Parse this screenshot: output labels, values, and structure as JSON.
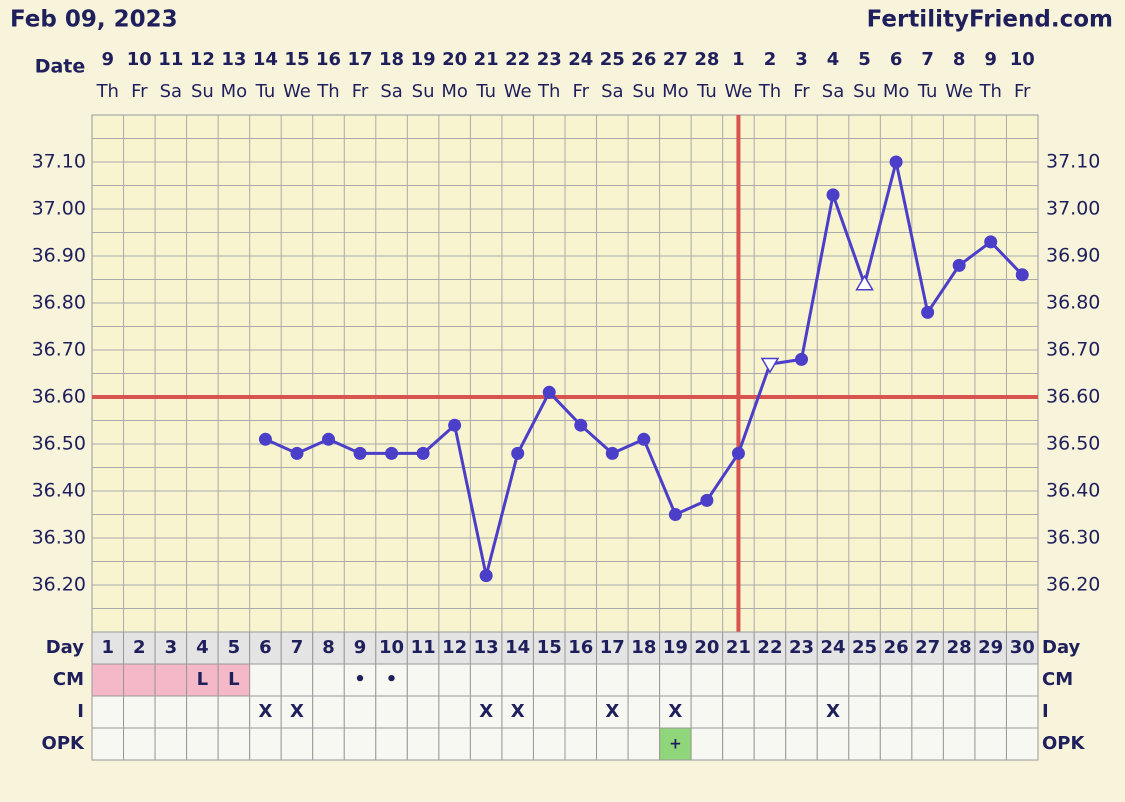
{
  "header": {
    "date": "Feb 09, 2023",
    "site": "FertilityFriend.com"
  },
  "chart_data": {
    "type": "line",
    "date_label": "Date",
    "dates": [
      "9",
      "10",
      "11",
      "12",
      "13",
      "14",
      "15",
      "16",
      "17",
      "18",
      "19",
      "20",
      "21",
      "22",
      "23",
      "24",
      "25",
      "26",
      "27",
      "28",
      "1",
      "2",
      "3",
      "4",
      "5",
      "6",
      "7",
      "8",
      "9",
      "10"
    ],
    "weekdays": [
      "Th",
      "Fr",
      "Sa",
      "Su",
      "Mo",
      "Tu",
      "We",
      "Th",
      "Fr",
      "Sa",
      "Su",
      "Mo",
      "Tu",
      "We",
      "Th",
      "Fr",
      "Sa",
      "Su",
      "Mo",
      "Tu",
      "We",
      "Th",
      "Fr",
      "Sa",
      "Su",
      "Mo",
      "Tu",
      "We",
      "Th",
      "Fr"
    ],
    "categories": [
      "1",
      "2",
      "3",
      "4",
      "5",
      "6",
      "7",
      "8",
      "9",
      "10",
      "11",
      "12",
      "13",
      "14",
      "15",
      "16",
      "17",
      "18",
      "19",
      "20",
      "21",
      "22",
      "23",
      "24",
      "25",
      "26",
      "27",
      "28",
      "29",
      "30"
    ],
    "series": [
      {
        "color": "#4b3ec8",
        "values": [
          null,
          null,
          null,
          null,
          null,
          36.51,
          36.48,
          36.51,
          36.48,
          36.48,
          36.48,
          36.54,
          36.22,
          36.48,
          36.61,
          36.54,
          36.48,
          36.51,
          36.35,
          36.38,
          36.48,
          36.67,
          36.68,
          37.03,
          36.84,
          37.1,
          36.78,
          36.88,
          36.93,
          36.86
        ],
        "markers": [
          null,
          null,
          null,
          null,
          null,
          "circle",
          "circle",
          "circle",
          "circle",
          "circle",
          "circle",
          "circle",
          "circle",
          "circle",
          "circle",
          "circle",
          "circle",
          "circle",
          "circle",
          "circle",
          "circle",
          "triangle-down",
          "circle",
          "circle",
          "triangle-up",
          "circle",
          "circle",
          "circle",
          "circle",
          "circle"
        ]
      }
    ],
    "ylim": [
      36.1,
      37.2
    ],
    "yticks": [
      {
        "value": 36.2,
        "label": "36.20"
      },
      {
        "value": 36.3,
        "label": "36.30"
      },
      {
        "value": 36.4,
        "label": "36.40"
      },
      {
        "value": 36.5,
        "label": "36.50"
      },
      {
        "value": 36.6,
        "label": "36.60"
      },
      {
        "value": 36.7,
        "label": "36.70"
      },
      {
        "value": 36.8,
        "label": "36.80"
      },
      {
        "value": 36.9,
        "label": "36.90"
      },
      {
        "value": 37.0,
        "label": "37.00"
      },
      {
        "value": 37.1,
        "label": "37.10"
      }
    ],
    "grid": true,
    "grid_step": 0.05,
    "coverline": 36.6,
    "ovulation_day": 21,
    "line_color": "#d9534f",
    "row_labels": {
      "day": "Day",
      "cm": "CM",
      "i": "I",
      "opk": "OPK"
    },
    "period_days": [
      1,
      2,
      3,
      4,
      5
    ],
    "period_color": "#f4b8c8",
    "cm": [
      null,
      null,
      null,
      "L",
      "L",
      null,
      null,
      null,
      "•",
      "•",
      null,
      null,
      null,
      null,
      null,
      null,
      null,
      null,
      null,
      null,
      null,
      null,
      null,
      null,
      null,
      null,
      null,
      null,
      null,
      null
    ],
    "intercourse": [
      null,
      null,
      null,
      null,
      null,
      "X",
      "X",
      null,
      null,
      null,
      null,
      null,
      "X",
      "X",
      null,
      null,
      "X",
      null,
      "X",
      null,
      null,
      null,
      null,
      "X",
      null,
      null,
      null,
      null,
      null,
      null
    ],
    "opk": [
      null,
      null,
      null,
      null,
      null,
      null,
      null,
      null,
      null,
      null,
      null,
      null,
      null,
      null,
      null,
      null,
      null,
      null,
      "+",
      null,
      null,
      null,
      null,
      null,
      null,
      null,
      null,
      null,
      null,
      null
    ],
    "opk_color": "#8fd67a"
  }
}
